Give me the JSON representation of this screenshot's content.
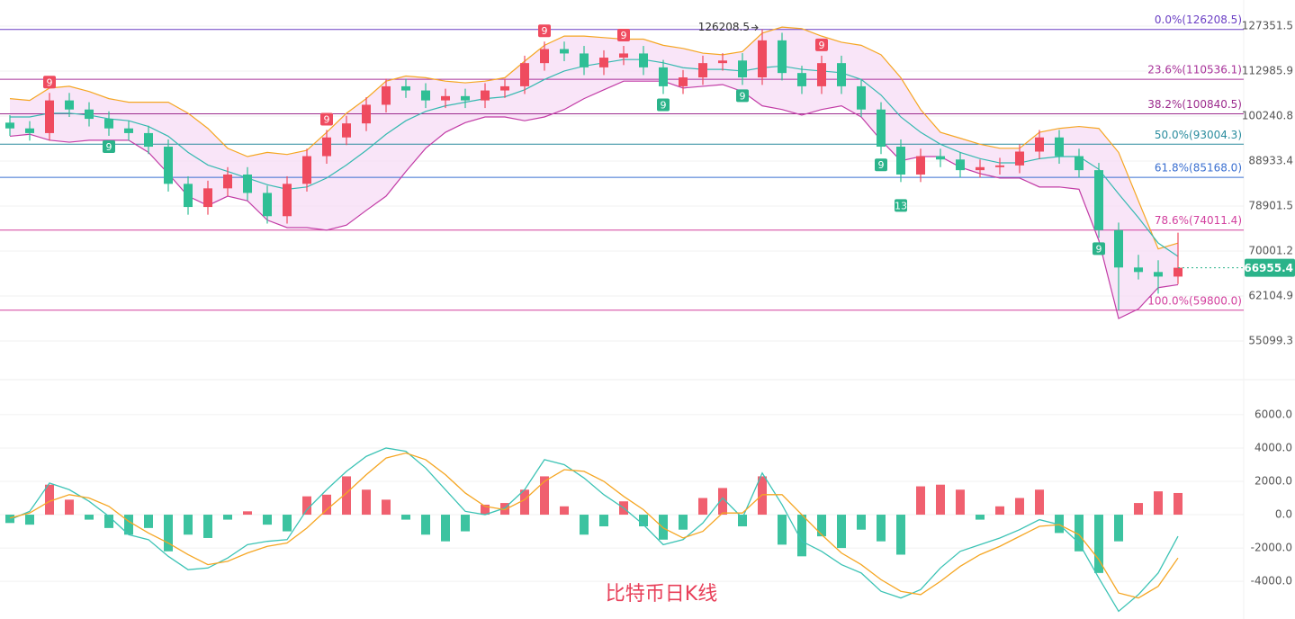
{
  "chart_data": [
    {
      "type": "candlestick",
      "log_scale": true,
      "grid": true,
      "up_color": "#ef4b5f",
      "down_color": "#2fbf95",
      "ylim": [
        49950,
        136500
      ],
      "yticks": [
        127351.5,
        112985.9,
        100240.8,
        88933.4,
        78901.5,
        70001.2,
        62104.9,
        55099.3
      ],
      "open": [
        98500,
        97000,
        95800,
        104500,
        102000,
        99500,
        97000,
        95800,
        92400,
        83700,
        78700,
        82700,
        85800,
        81700,
        76800,
        83700,
        90100,
        94700,
        98300,
        103300,
        108500,
        107300,
        104500,
        105700,
        104500,
        107300,
        108500,
        115400,
        119800,
        118400,
        114100,
        117100,
        118400,
        114100,
        108500,
        111100,
        115400,
        116200,
        111100,
        122600,
        112400,
        108500,
        115400,
        108500,
        102000,
        92400,
        85800,
        90100,
        89300,
        86800,
        87500,
        87900,
        91200,
        94700,
        90100,
        86800,
        74000,
        67000,
        66200,
        65400
      ],
      "high": [
        100500,
        98900,
        106600,
        106600,
        104000,
        101500,
        98900,
        97700,
        94200,
        85400,
        84400,
        87500,
        87500,
        83300,
        85400,
        91900,
        96600,
        100300,
        105400,
        110700,
        110700,
        109400,
        107800,
        107800,
        109400,
        110700,
        117700,
        122200,
        122200,
        120800,
        119400,
        120800,
        120800,
        116400,
        113300,
        117700,
        118500,
        118500,
        126208.5,
        125100,
        114600,
        117700,
        117700,
        110700,
        104000,
        94200,
        91900,
        91900,
        91100,
        89300,
        89700,
        93000,
        96600,
        96600,
        91900,
        88500,
        75500,
        69300,
        68300,
        73500
      ],
      "low": [
        95100,
        93900,
        93900,
        100000,
        97500,
        95100,
        93900,
        90600,
        82000,
        77100,
        77100,
        81000,
        80100,
        75300,
        75300,
        82000,
        88300,
        92800,
        96300,
        101200,
        105200,
        102400,
        102400,
        102400,
        102400,
        105200,
        106300,
        113100,
        116000,
        111800,
        111800,
        114800,
        111800,
        106300,
        106300,
        108900,
        113100,
        108900,
        108900,
        110200,
        106300,
        106300,
        106300,
        100000,
        90600,
        84100,
        84100,
        87500,
        85100,
        85100,
        85800,
        86100,
        89400,
        88300,
        85100,
        72500,
        59800,
        64900,
        62500,
        64100
      ],
      "close": [
        97000,
        95800,
        104500,
        102000,
        99500,
        97000,
        95800,
        92400,
        83700,
        78700,
        82700,
        85800,
        81700,
        76800,
        83700,
        90100,
        94700,
        98300,
        103300,
        108500,
        107300,
        104500,
        105700,
        104500,
        107300,
        108500,
        115400,
        119800,
        118400,
        114100,
        117100,
        118400,
        114100,
        108500,
        111100,
        115400,
        116200,
        111100,
        122600,
        112400,
        108500,
        115400,
        108500,
        102000,
        92400,
        85800,
        90100,
        89300,
        86800,
        87500,
        87900,
        91200,
        94700,
        90100,
        86800,
        74000,
        67000,
        66200,
        65400,
        66955.4
      ],
      "bb_upper": [
        105000,
        104500,
        108000,
        108500,
        107000,
        105000,
        104000,
        104000,
        104000,
        101000,
        97000,
        92000,
        90000,
        91000,
        90500,
        91500,
        96000,
        101000,
        105000,
        110000,
        111500,
        111000,
        110000,
        109500,
        110000,
        111000,
        116000,
        121000,
        124000,
        124000,
        123500,
        123000,
        123000,
        121000,
        120000,
        118500,
        118000,
        119000,
        125000,
        127000,
        126500,
        124000,
        122000,
        121000,
        118000,
        111000,
        102000,
        96000,
        94500,
        93000,
        92000,
        92000,
        96000,
        97000,
        97500,
        97000,
        91000,
        80000,
        70400,
        71500
      ],
      "bb_mid": [
        100000,
        100000,
        101000,
        101000,
        100500,
        99500,
        99000,
        97500,
        95000,
        91000,
        88000,
        86500,
        85000,
        83500,
        82500,
        83000,
        85000,
        88000,
        91500,
        95500,
        99000,
        101500,
        103000,
        104000,
        105000,
        105500,
        107500,
        110500,
        113000,
        114500,
        115500,
        116500,
        116500,
        115500,
        114000,
        113500,
        113500,
        113000,
        114000,
        114500,
        113500,
        113000,
        112500,
        110500,
        106000,
        100000,
        96000,
        93000,
        91000,
        89500,
        88500,
        88500,
        89500,
        90000,
        90000,
        87000,
        81500,
        76500,
        71500,
        69000
      ],
      "bb_lower": [
        95000,
        95500,
        94000,
        93500,
        94000,
        94000,
        94000,
        91000,
        86000,
        81000,
        79000,
        81000,
        80000,
        76000,
        74500,
        74500,
        74000,
        75000,
        78000,
        81000,
        86500,
        92000,
        96000,
        98500,
        100000,
        100000,
        99000,
        100000,
        102000,
        105000,
        107500,
        110000,
        110000,
        110000,
        108000,
        108500,
        109000,
        107000,
        103000,
        102000,
        100500,
        102000,
        103000,
        100000,
        94000,
        89000,
        90000,
        90000,
        87500,
        86000,
        85000,
        85000,
        83000,
        83000,
        82500,
        72000,
        58500,
        60000,
        63500,
        64000
      ],
      "bb_colors": {
        "upper": "#f5a623",
        "mid": "#35b9b0",
        "lower": "#c23ca6",
        "fill": "#f7dcf6"
      },
      "fib_levels": [
        {
          "value": 126208.5,
          "label": "0.0%(126208.5)",
          "color": "#6b3fc4"
        },
        {
          "value": 110536.1,
          "label": "23.6%(110536.1)",
          "color": "#a8329a"
        },
        {
          "value": 100840.5,
          "label": "38.2%(100840.5)",
          "color": "#9c2b8d"
        },
        {
          "value": 93004.3,
          "label": "50.0%(93004.3)",
          "color": "#2a8c9e"
        },
        {
          "value": 85168.0,
          "label": "61.8%(85168.0)",
          "color": "#3a6fd0"
        },
        {
          "value": 74011.4,
          "label": "78.6%(74011.4)",
          "color": "#d23f9e"
        },
        {
          "value": 59800.0,
          "label": "100.0%(59800.0)",
          "color": "#d23f9e"
        }
      ],
      "td_marks": [
        {
          "index": 2,
          "label": "9",
          "position": "above"
        },
        {
          "index": 16,
          "label": "9",
          "position": "above"
        },
        {
          "index": 27,
          "label": "9",
          "position": "above"
        },
        {
          "index": 31,
          "label": "9",
          "position": "above"
        },
        {
          "index": 41,
          "label": "9",
          "position": "above"
        },
        {
          "index": 5,
          "label": "9",
          "position": "below"
        },
        {
          "index": 33,
          "label": "9",
          "position": "below"
        },
        {
          "index": 37,
          "label": "9",
          "position": "below"
        },
        {
          "index": 44,
          "label": "9",
          "position": "below"
        },
        {
          "index": 45,
          "label": "13",
          "position": "below"
        },
        {
          "index": 55,
          "label": "9",
          "position": "below"
        }
      ],
      "high_mark_index": 38,
      "price_tag_color": "#2bb38a"
    },
    {
      "type": "macd",
      "grid": true,
      "title": "比特币日K线",
      "ylim": [
        -6100,
        7130
      ],
      "yticks": [
        {
          "value": 6000,
          "label": "6000.0"
        },
        {
          "value": 4000,
          "label": "4000.0"
        },
        {
          "value": 2000,
          "label": "2000.0"
        },
        {
          "value": 0,
          "label": "0.0"
        },
        {
          "value": -2000,
          "label": "-2000.0"
        },
        {
          "value": -4000,
          "label": "-4000.0"
        }
      ],
      "hist": [
        -500,
        -600,
        1800,
        900,
        -300,
        -800,
        -1200,
        -800,
        -2200,
        -1200,
        -1400,
        -300,
        200,
        -600,
        -1000,
        1100,
        1200,
        2300,
        1500,
        900,
        -300,
        -1200,
        -1600,
        -1000,
        600,
        700,
        1500,
        2300,
        500,
        -1200,
        -700,
        800,
        -700,
        -1500,
        -900,
        1000,
        1600,
        -700,
        2300,
        -1800,
        -2500,
        -1300,
        -2000,
        -900,
        -1600,
        -2400,
        1700,
        1800,
        1500,
        -300,
        500,
        1000,
        1500,
        -1100,
        -2200,
        -3500,
        -1600,
        700,
        1400,
        1300
      ],
      "dif": [
        -300,
        200,
        1900,
        1500,
        800,
        -100,
        -1200,
        -1500,
        -2500,
        -3300,
        -3200,
        -2600,
        -1800,
        -1600,
        -1500,
        300,
        1500,
        2600,
        3500,
        4000,
        3800,
        2800,
        1500,
        200,
        0,
        400,
        1500,
        3300,
        3000,
        2200,
        1200,
        400,
        -600,
        -1800,
        -1500,
        -500,
        1000,
        -200,
        2500,
        600,
        -1600,
        -2200,
        -3000,
        -3500,
        -4600,
        -5000,
        -4500,
        -3200,
        -2200,
        -1800,
        -1400,
        -900,
        -300,
        -600,
        -1700,
        -3800,
        -5800,
        -4800,
        -3500,
        -1300
      ],
      "dea": [
        -200,
        100,
        800,
        1200,
        1000,
        500,
        -400,
        -1100,
        -1700,
        -2400,
        -3000,
        -2800,
        -2300,
        -1900,
        -1700,
        -800,
        300,
        1300,
        2400,
        3400,
        3700,
        3300,
        2400,
        1300,
        500,
        300,
        900,
        2000,
        2700,
        2600,
        2000,
        1100,
        300,
        -800,
        -1400,
        -1000,
        100,
        100,
        1200,
        1200,
        0,
        -1200,
        -2300,
        -3000,
        -3900,
        -4600,
        -4800,
        -4000,
        -3100,
        -2400,
        -1900,
        -1300,
        -700,
        -600,
        -1200,
        -2700,
        -4700,
        -5000,
        -4300,
        -2600
      ],
      "colors": {
        "pos": "#f0606f",
        "neg": "#3cc3a0",
        "dif": "#3cc3b5",
        "dea": "#f5a623",
        "title": "#e8405a"
      }
    }
  ]
}
